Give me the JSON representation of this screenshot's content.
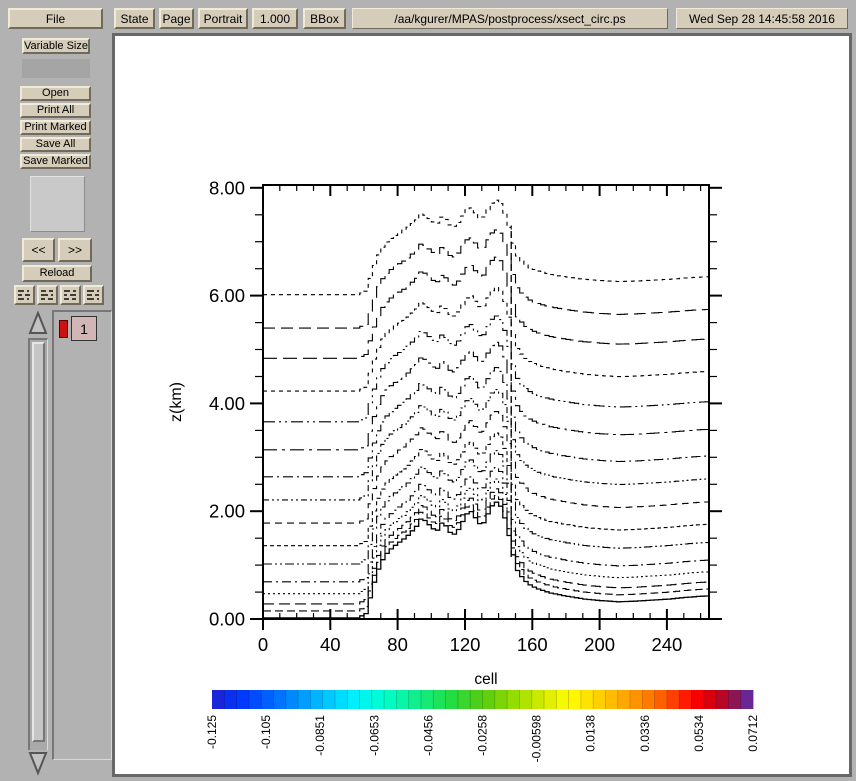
{
  "window": {
    "bg_color": "#b2b2b2",
    "button_color": "#d5ccb9"
  },
  "toolbar": {
    "file_label": "File",
    "state_label": "State",
    "page_label": "Page",
    "orientation_label": "Portrait",
    "scale_value": "1.000",
    "bbox_label": "BBox",
    "filename": "/aa/kgurer/MPAS/postprocess/xsect_circ.ps",
    "timestamp": "Wed Sep 28 14:45:58 2016"
  },
  "sidebar": {
    "variable_size_label": "Variable Size",
    "open_label": "Open",
    "print_all_label": "Print All",
    "print_marked_label": "Print Marked",
    "save_all_label": "Save All",
    "save_marked_label": "Save Marked",
    "prev_label": "<<",
    "next_label": ">>",
    "reload_label": "Reload",
    "page_list": {
      "pages": [
        "1"
      ],
      "current_page": "1",
      "marked": true
    }
  },
  "chart_data": {
    "type": "line",
    "title": "",
    "xlabel": "cell",
    "ylabel": "z(km)",
    "xlim": [
      0,
      265
    ],
    "ylim": [
      0,
      8.05
    ],
    "x_major_ticks": [
      0,
      40,
      80,
      120,
      160,
      200,
      240
    ],
    "x_tick_labels": [
      "0",
      "40",
      "80",
      "120",
      "160",
      "200",
      "240"
    ],
    "x_minor_interval": 10,
    "y_major_ticks": [
      0,
      2,
      4,
      6,
      8
    ],
    "y_tick_labels": [
      "0.00",
      "2.00",
      "4.00",
      "6.00",
      "8.00"
    ],
    "y_minor_interval": 0.5,
    "description": "Terrain-following model-level heights along a cross-section; solid line = terrain (mountain between cells ~60 and ~150), dashed lines = vertical coordinate levels lifted over the ridge, vertical dashed marker near cell 148.",
    "terrain": {
      "x": [
        0,
        55,
        60,
        63,
        66,
        69,
        72,
        75,
        78,
        81,
        84,
        87,
        90,
        93,
        96,
        99,
        102,
        105,
        108,
        111,
        114,
        117,
        120,
        123,
        126,
        129,
        132,
        135,
        138,
        141,
        144,
        147,
        150,
        154,
        158,
        163,
        170,
        180,
        190,
        200,
        210,
        220,
        230,
        240,
        250,
        258,
        265
      ],
      "z": [
        0.02,
        0.02,
        0.1,
        0.45,
        0.8,
        1.05,
        1.2,
        1.3,
        1.38,
        1.45,
        1.52,
        1.62,
        1.72,
        1.88,
        1.8,
        1.7,
        1.62,
        1.78,
        1.72,
        1.55,
        1.6,
        1.78,
        1.95,
        2.0,
        1.82,
        1.72,
        1.92,
        2.1,
        2.18,
        2.05,
        1.7,
        1.25,
        0.9,
        0.72,
        0.62,
        0.55,
        0.48,
        0.42,
        0.37,
        0.34,
        0.32,
        0.33,
        0.35,
        0.37,
        0.4,
        0.42,
        0.43
      ]
    },
    "levels": [
      {
        "z0": 0.13,
        "dash": "8,4"
      },
      {
        "z0": 0.26,
        "dash": "11,5"
      },
      {
        "z0": 0.45,
        "dash": "2,3"
      },
      {
        "z0": 0.67,
        "dash": "9,4,2,4"
      },
      {
        "z0": 1.0,
        "dash": "9,3,2,3,2,3"
      },
      {
        "z0": 1.34,
        "dash": "4,3"
      },
      {
        "z0": 1.76,
        "dash": "7,5"
      },
      {
        "z0": 2.19,
        "dash": "6,3,2,3,2,3"
      },
      {
        "z0": 2.62,
        "dash": "10,4,2,4"
      },
      {
        "z0": 3.12,
        "dash": "14,5,3,5"
      },
      {
        "z0": 3.64,
        "dash": "12,4,2,4,2,4"
      },
      {
        "z0": 4.21,
        "dash": "4,4"
      },
      {
        "z0": 4.82,
        "dash": "14,6"
      },
      {
        "z0": 5.38,
        "dash": "12,6"
      },
      {
        "z0": 6.0,
        "dash": "4,4"
      }
    ],
    "level_stretch_exponent": 0.15,
    "model_top_km": 8.1,
    "marker_line": {
      "cell": 147.5,
      "z_from": 1.15,
      "z_to": 7.3,
      "dash": "7,4"
    },
    "colorbar": {
      "tick_labels": [
        "-0.125",
        "-0.105",
        "-0.0851",
        "-0.0653",
        "-0.0456",
        "-0.0258",
        "-0.00598",
        "0.0138",
        "0.0336",
        "0.0534",
        "0.0712"
      ],
      "n_segments": 44,
      "gradient_stops": [
        {
          "t": 0.0,
          "c": "#2222cc"
        },
        {
          "t": 0.05,
          "c": "#0033ff"
        },
        {
          "t": 0.13,
          "c": "#0077ff"
        },
        {
          "t": 0.2,
          "c": "#00bbff"
        },
        {
          "t": 0.26,
          "c": "#00eeff"
        },
        {
          "t": 0.32,
          "c": "#00ffcc"
        },
        {
          "t": 0.38,
          "c": "#11ee88"
        },
        {
          "t": 0.44,
          "c": "#22dd44"
        },
        {
          "t": 0.5,
          "c": "#55cc11"
        },
        {
          "t": 0.56,
          "c": "#99dd00"
        },
        {
          "t": 0.62,
          "c": "#ddee00"
        },
        {
          "t": 0.66,
          "c": "#ffff00"
        },
        {
          "t": 0.72,
          "c": "#ffcc00"
        },
        {
          "t": 0.78,
          "c": "#ff9900"
        },
        {
          "t": 0.84,
          "c": "#ff5500"
        },
        {
          "t": 0.89,
          "c": "#ff0000"
        },
        {
          "t": 0.93,
          "c": "#cc0011"
        },
        {
          "t": 0.96,
          "c": "#991144"
        },
        {
          "t": 0.985,
          "c": "#662288"
        },
        {
          "t": 1.0,
          "c": "#7733bb"
        }
      ]
    }
  }
}
